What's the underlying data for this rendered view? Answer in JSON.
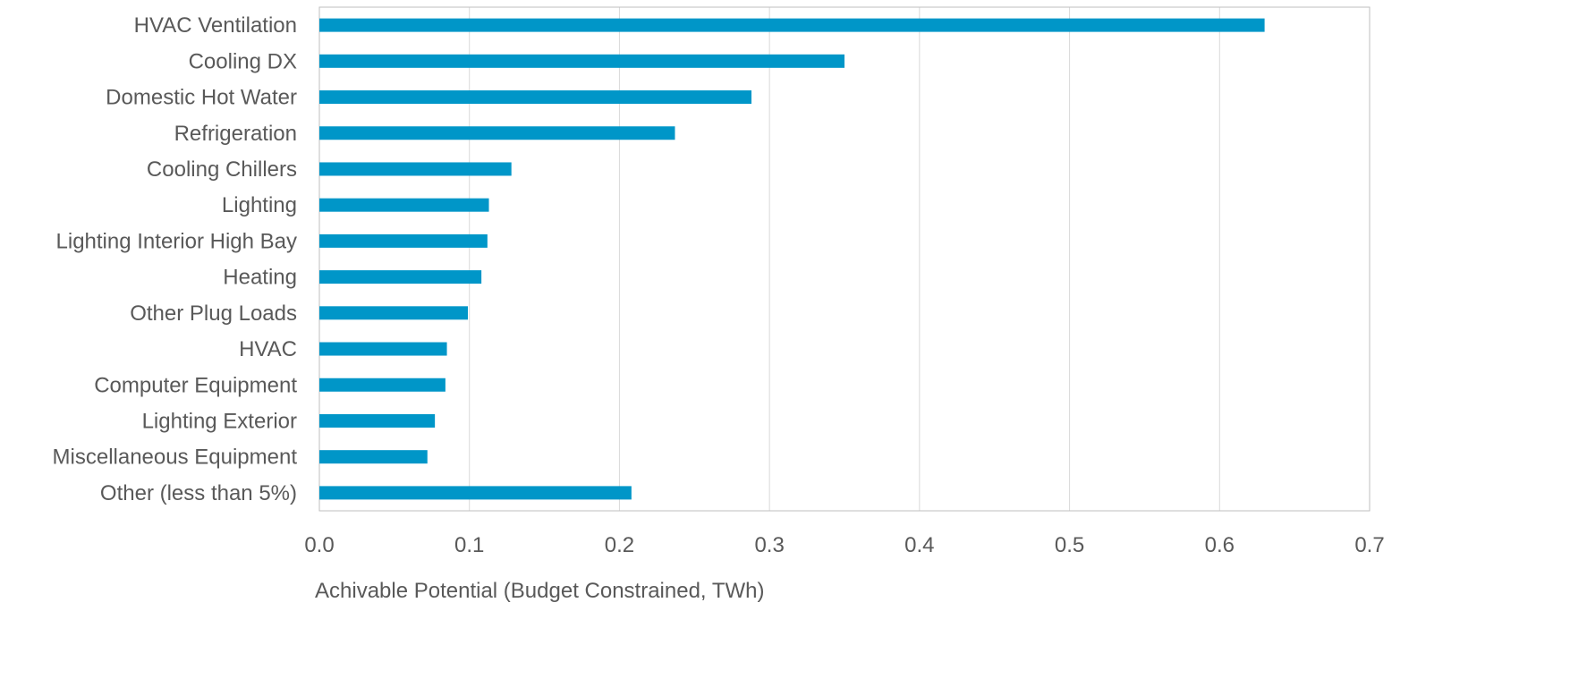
{
  "colors": {
    "bar": "#0096C8",
    "grid": "#D9D9D9",
    "axis": "#BFBFBF",
    "text": "#595959"
  },
  "chart_data": {
    "type": "bar",
    "orientation": "horizontal",
    "categories": [
      "HVAC Ventilation",
      "Cooling DX",
      "Domestic Hot Water",
      "Refrigeration",
      "Cooling Chillers",
      "Lighting",
      "Lighting Interior High Bay",
      "Heating",
      "Other Plug Loads",
      "HVAC",
      "Computer Equipment",
      "Lighting Exterior",
      "Miscellaneous Equipment",
      "Other (less than 5%)"
    ],
    "values": [
      0.63,
      0.35,
      0.288,
      0.237,
      0.128,
      0.113,
      0.112,
      0.108,
      0.099,
      0.085,
      0.084,
      0.077,
      0.072,
      0.208
    ],
    "xlabel": "Achivable Potential (Budget Constrained, TWh)",
    "ylabel": "",
    "xlim": [
      0,
      0.7
    ],
    "xticks": [
      "0.0",
      "0.1",
      "0.2",
      "0.3",
      "0.4",
      "0.5",
      "0.6",
      "0.7"
    ],
    "grid": true,
    "legend": "none"
  }
}
